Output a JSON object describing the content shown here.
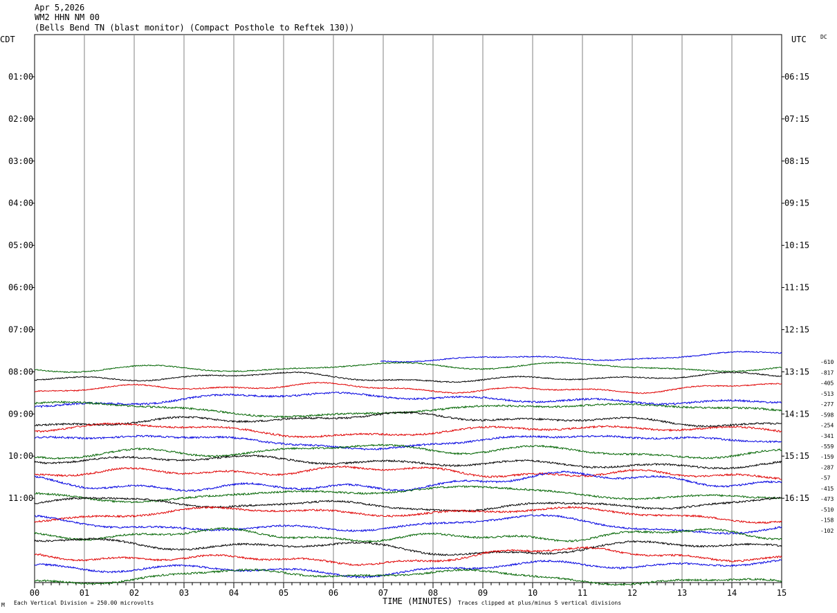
{
  "header": {
    "date": "Apr 5,2026",
    "channel": "WM2 HHN NM 00",
    "station": "(Bells Bend TN (blast monitor) (Compact Posthole to Reftek 130))"
  },
  "left_axis_label": "CDT",
  "right_axis_label": "UTC",
  "dc_label": "DC",
  "footer": {
    "scale": "Each Vertical Division =  250.00 microvolts",
    "xlabel": "TIME (MINUTES)",
    "clip_note": "Traces clipped at plus/minus 5 vertical divisions",
    "corner_mark": "M"
  },
  "colors": {
    "black": "#000000",
    "red": "#e00000",
    "blue": "#0000e0",
    "green": "#006400",
    "grid": "#808080"
  },
  "chart_data": {
    "type": "line",
    "title": "",
    "xlabel": "TIME (MINUTES)",
    "xlim": [
      0,
      15
    ],
    "x_ticks": [
      "00",
      "01",
      "02",
      "03",
      "04",
      "05",
      "06",
      "07",
      "08",
      "09",
      "10",
      "11",
      "12",
      "13",
      "14",
      "15"
    ],
    "left_ticks": [
      "01:00",
      "02:00",
      "03:00",
      "04:00",
      "05:00",
      "06:00",
      "07:00",
      "08:00",
      "09:00",
      "10:00",
      "11:00"
    ],
    "right_ticks": [
      "06:15",
      "07:15",
      "08:15",
      "09:15",
      "10:15",
      "11:15",
      "12:15",
      "13:15",
      "14:15",
      "15:15",
      "16:15"
    ],
    "hour_rows": 13,
    "rows_per_hour": 4,
    "trace_color_cycle": [
      "black",
      "red",
      "blue",
      "green"
    ],
    "first_trace_row": 30,
    "last_trace_row": 51,
    "partial_trace": {
      "row": 30,
      "start_minute": 6.95
    },
    "offsets": [
      "-610",
      "-817",
      "-405",
      "-513",
      "-277",
      "-598",
      "-254",
      "-341",
      "-559",
      "-159",
      "-287",
      "-57",
      "-415",
      "-473",
      "-510",
      "-158",
      "-102"
    ]
  }
}
